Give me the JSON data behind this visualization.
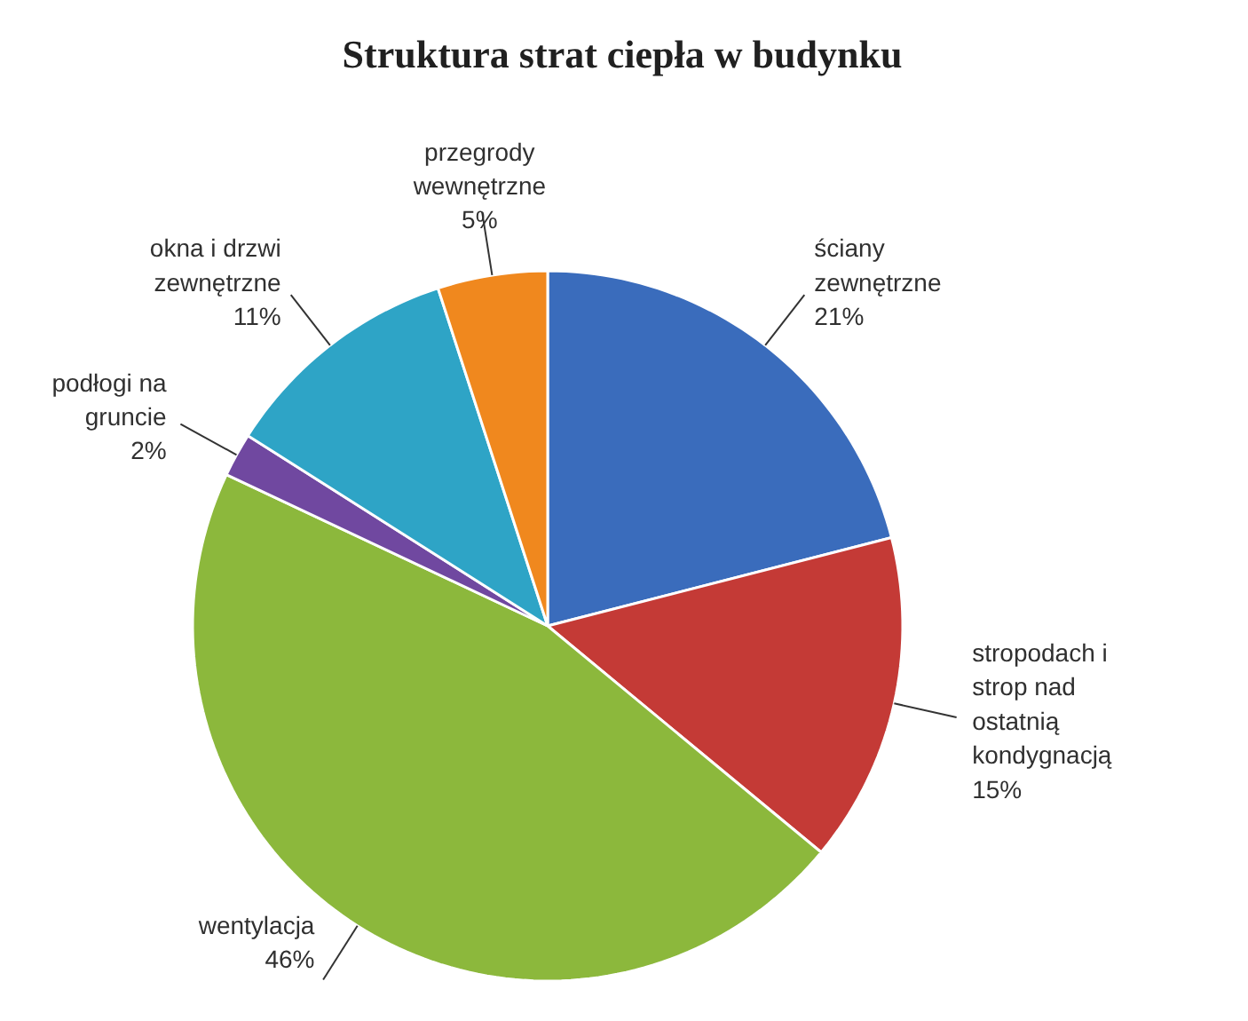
{
  "chart_data": {
    "type": "pie",
    "title": "Struktura strat ciepła w budynku",
    "categories": [
      "ściany zewnętrzne",
      "stropodach i strop nad ostatnią kondygnacją",
      "wentylacja",
      "podłogi na gruncie",
      "okna i drzwi zewnętrzne",
      "przegrody wewnętrzne"
    ],
    "values": [
      21,
      15,
      46,
      2,
      11,
      5
    ],
    "value_labels": [
      "21%",
      "15%",
      "46%",
      "2%",
      "11%",
      "5%"
    ],
    "colors": [
      "#3a6cbc",
      "#c43a36",
      "#8cb83c",
      "#7048a0",
      "#2ea4c6",
      "#f0881e"
    ]
  }
}
